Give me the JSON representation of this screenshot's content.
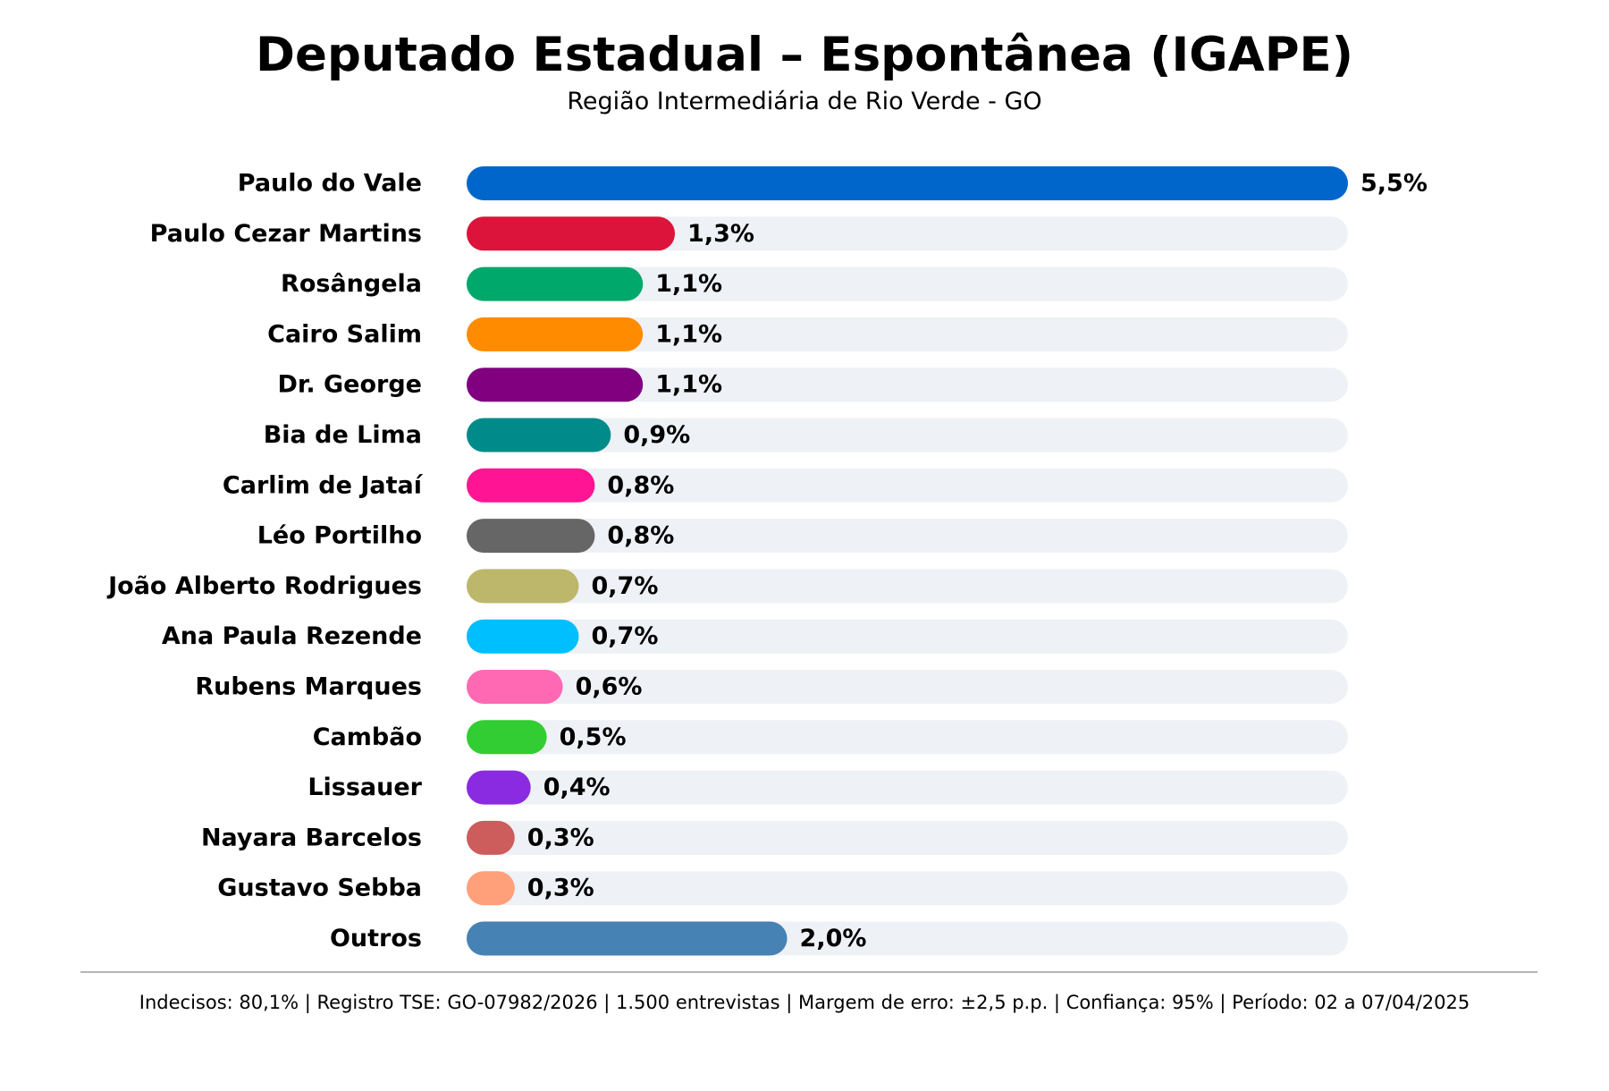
{
  "chart_data": {
    "type": "bar",
    "orientation": "horizontal",
    "title": "Deputado Estadual – Espontânea (IGAPE)",
    "subtitle": "Região Intermediária de Rio Verde - GO",
    "categories": [
      "Paulo do Vale",
      "Paulo Cezar Martins",
      "Rosângela",
      "Cairo Salim",
      "Dr. George",
      "Bia de Lima",
      "Carlim de Jataí",
      "Léo Portilho",
      "João Alberto Rodrigues",
      "Ana Paula Rezende",
      "Rubens Marques",
      "Cambão",
      "Lissauer",
      "Nayara Barcelos",
      "Gustavo Sebba",
      "Outros"
    ],
    "values": [
      5.5,
      1.3,
      1.1,
      1.1,
      1.1,
      0.9,
      0.8,
      0.8,
      0.7,
      0.7,
      0.6,
      0.5,
      0.4,
      0.3,
      0.3,
      2.0
    ],
    "value_labels": [
      "5,5%",
      "1,3%",
      "1,1%",
      "1,1%",
      "1,1%",
      "0,9%",
      "0,8%",
      "0,8%",
      "0,7%",
      "0,7%",
      "0,6%",
      "0,5%",
      "0,4%",
      "0,3%",
      "0,3%",
      "2,0%"
    ],
    "colors": [
      "#0066cc",
      "#dc143c",
      "#00a86b",
      "#ff8c00",
      "#800080",
      "#008b8b",
      "#ff1493",
      "#666666",
      "#bdb76b",
      "#00bfff",
      "#ff69b4",
      "#32cd32",
      "#8a2be2",
      "#cd5c5c",
      "#ffa07a",
      "#4682b4"
    ],
    "track_color": "#eef1f6",
    "xlim": [
      0,
      5.5
    ],
    "xlabel": "",
    "ylabel": "",
    "grid": false,
    "legend": "none"
  },
  "footer": {
    "note": "Indecisos: 80,1% | Registro TSE: GO-07982/2026 | 1.500 entrevistas | Margem de erro: ±2,5 p.p. | Confiança: 95% | Período: 02 a 07/04/2025"
  }
}
